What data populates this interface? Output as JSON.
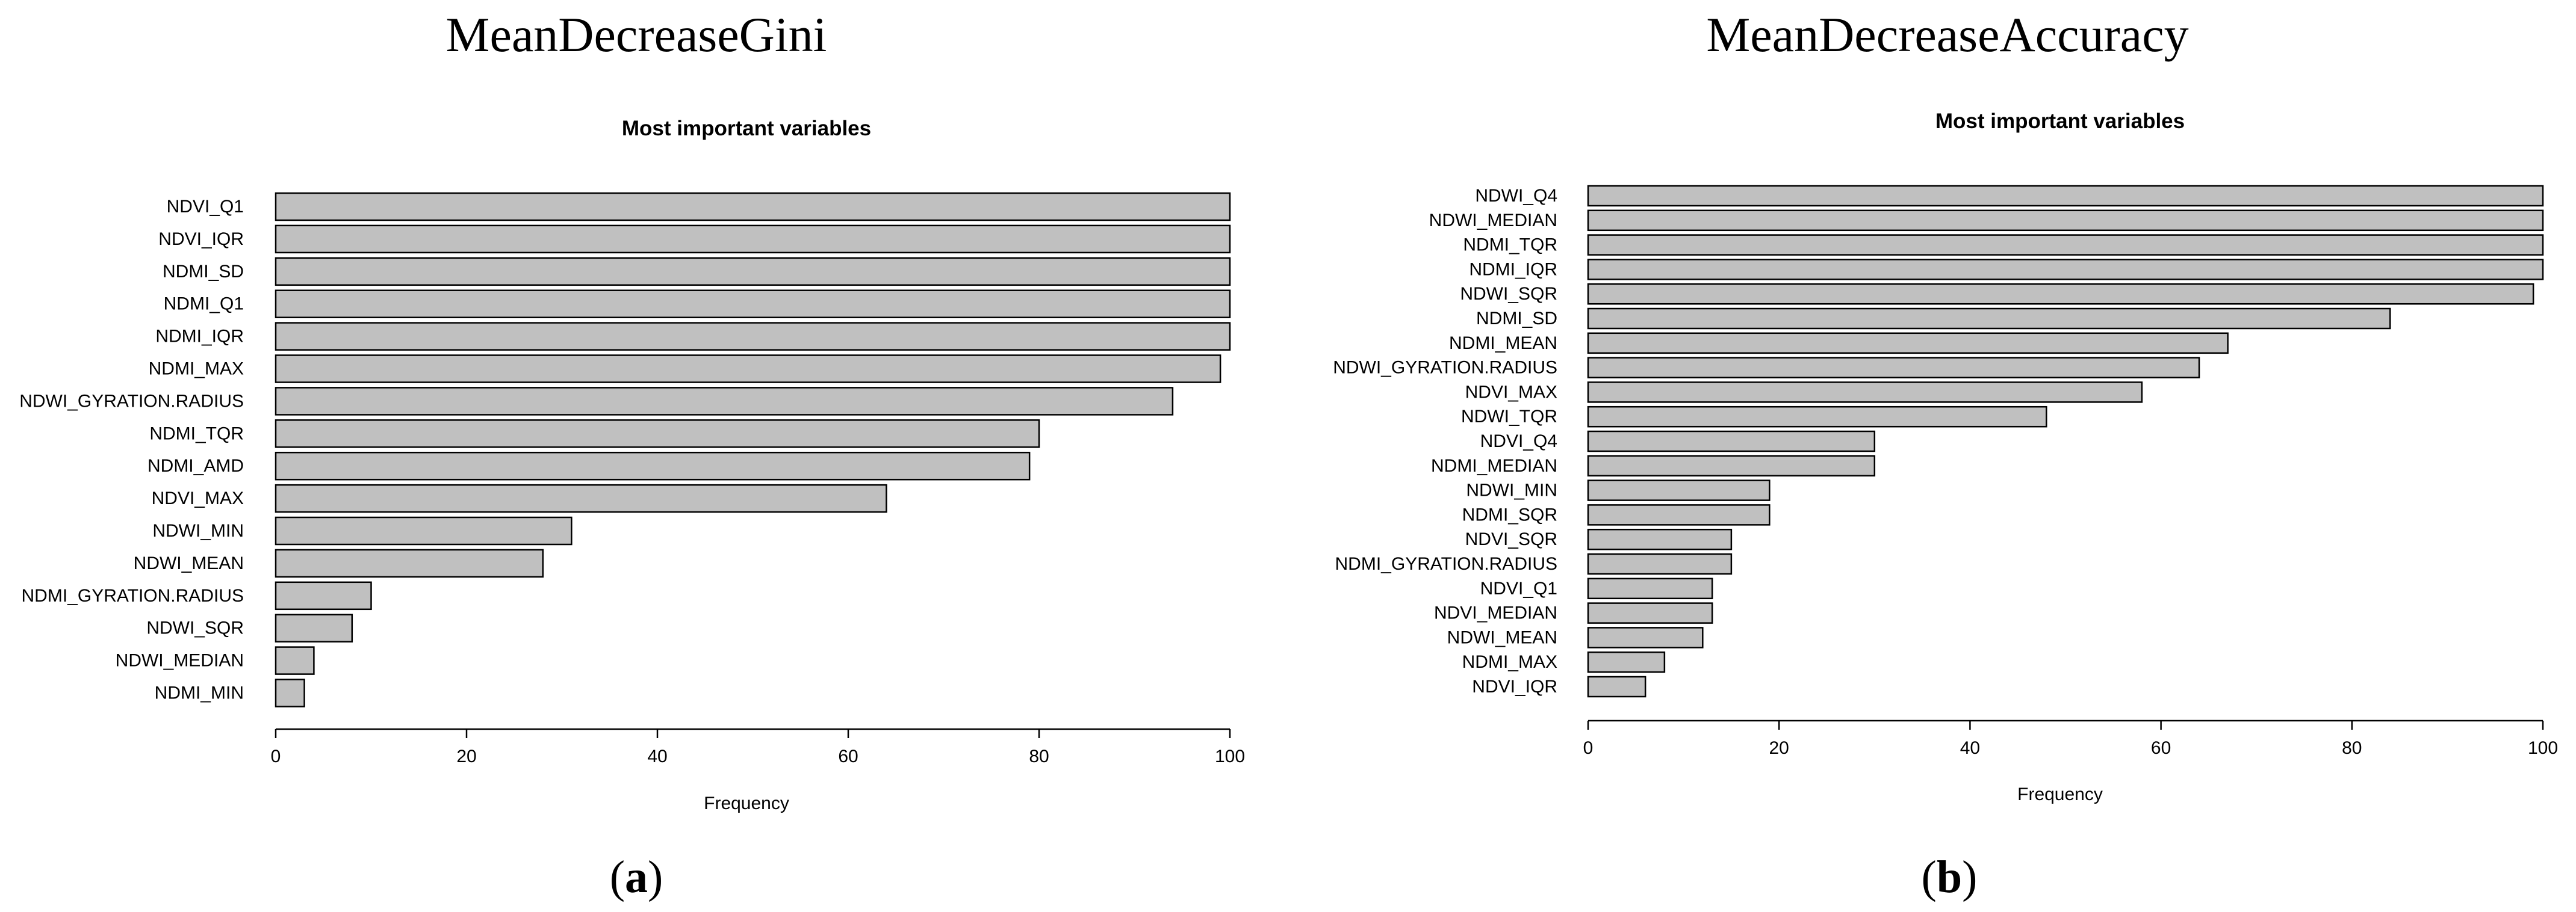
{
  "chart_data": [
    {
      "type": "bar",
      "orientation": "horizontal",
      "heading": "MeanDecreaseGini",
      "title": "Most important variables",
      "xlabel": "Frequency",
      "ylabel": "",
      "xlim": [
        0,
        100
      ],
      "xticks": [
        0,
        20,
        40,
        60,
        80,
        100
      ],
      "grid": false,
      "caption_open": "(",
      "caption_letter": "a",
      "caption_close": ")",
      "bar_color": "#c0c0c0",
      "categories": [
        "NDVI_Q1",
        "NDVI_IQR",
        "NDMI_SD",
        "NDMI_Q1",
        "NDMI_IQR",
        "NDMI_MAX",
        "NDWI_GYRATION.RADIUS",
        "NDMI_TQR",
        "NDMI_AMD",
        "NDVI_MAX",
        "NDWI_MIN",
        "NDWI_MEAN",
        "NDMI_GYRATION.RADIUS",
        "NDWI_SQR",
        "NDWI_MEDIAN",
        "NDMI_MIN"
      ],
      "values": [
        100,
        100,
        100,
        100,
        100,
        99,
        94,
        80,
        79,
        64,
        31,
        28,
        10,
        8,
        4,
        3
      ]
    },
    {
      "type": "bar",
      "orientation": "horizontal",
      "heading": "MeanDecreaseAccuracy",
      "title": "Most important variables",
      "xlabel": "Frequency",
      "ylabel": "",
      "xlim": [
        0,
        100
      ],
      "xticks": [
        0,
        20,
        40,
        60,
        80,
        100
      ],
      "grid": false,
      "caption_open": "(",
      "caption_letter": "b",
      "caption_close": ")",
      "bar_color": "#c0c0c0",
      "categories": [
        "NDWI_Q4",
        "NDWI_MEDIAN",
        "NDMI_TQR",
        "NDMI_IQR",
        "NDWI_SQR",
        "NDMI_SD",
        "NDMI_MEAN",
        "NDWI_GYRATION.RADIUS",
        "NDVI_MAX",
        "NDWI_TQR",
        "NDVI_Q4",
        "NDMI_MEDIAN",
        "NDWI_MIN",
        "NDMI_SQR",
        "NDVI_SQR",
        "NDMI_GYRATION.RADIUS",
        "NDVI_Q1",
        "NDVI_MEDIAN",
        "NDWI_MEAN",
        "NDMI_MAX",
        "NDVI_IQR"
      ],
      "values": [
        100,
        100,
        100,
        100,
        99,
        84,
        67,
        64,
        58,
        48,
        30,
        30,
        19,
        19,
        15,
        15,
        13,
        13,
        12,
        8,
        6
      ]
    }
  ]
}
